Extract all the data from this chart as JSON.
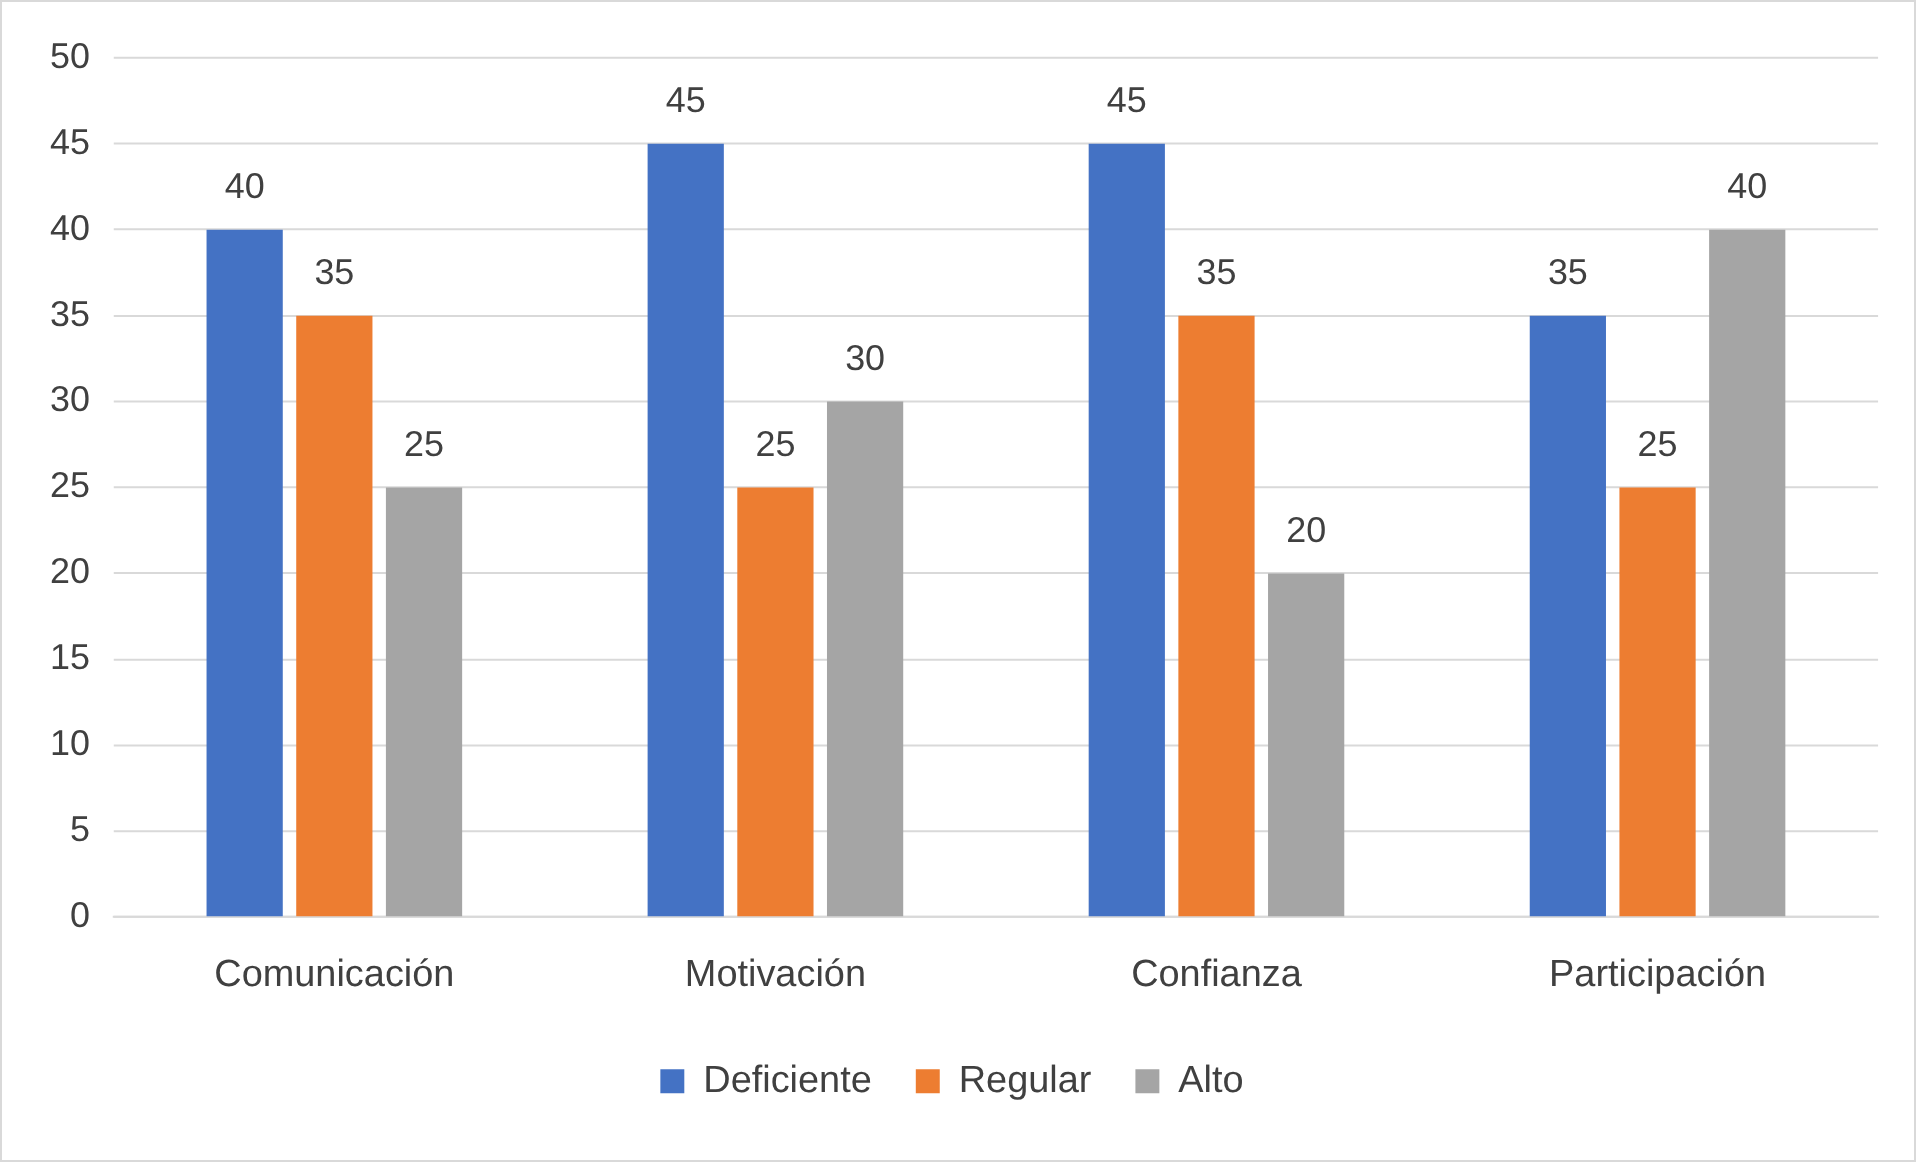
{
  "chart_data": {
    "type": "bar",
    "categories": [
      "Comunicación",
      "Motivación",
      "Confianza",
      "Participación"
    ],
    "series": [
      {
        "name": "Deficiente",
        "color": "#4472c4",
        "values": [
          40,
          45,
          45,
          35
        ]
      },
      {
        "name": "Regular",
        "color": "#ed7d31",
        "values": [
          35,
          25,
          35,
          25
        ]
      },
      {
        "name": "Alto",
        "color": "#a5a5a5",
        "values": [
          25,
          30,
          20,
          40
        ]
      }
    ],
    "ylim": [
      0,
      50
    ],
    "yticks": [
      0,
      5,
      10,
      15,
      20,
      25,
      30,
      35,
      40,
      45,
      50
    ],
    "grid": "y",
    "legend": "bottom",
    "data_labels": true
  }
}
